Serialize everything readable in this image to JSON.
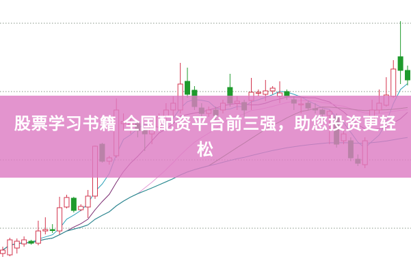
{
  "banner": {
    "text": "股票学习书籍 全国配资平台前三强，助您投资更轻松"
  },
  "chart_data": {
    "type": "candlestick",
    "title": "",
    "xlabel": "",
    "ylabel": "",
    "grid": "horizontal dotted",
    "gridlines": [
      6.7,
      16.7,
      26.7,
      36.7
    ],
    "ylim": [
      0,
      40
    ],
    "colors": {
      "up": "#d2304a",
      "down": "#1e9a2c",
      "grid": "#9aa89a",
      "ma": [
        "#2aa0b8",
        "#7a2a70",
        "#e59ad6",
        "#2e7a28",
        "#2a8ca0"
      ]
    },
    "moving_averages": [
      5,
      10,
      20,
      30,
      60
    ],
    "ohlc": [
      [
        3.0,
        3.5,
        4.0,
        2.5
      ],
      [
        2.8,
        5.0,
        5.3,
        2.6
      ],
      [
        3.8,
        4.8,
        5.2,
        3.0
      ],
      [
        4.4,
        5.0,
        5.5,
        4.0
      ],
      [
        4.8,
        4.5,
        5.0,
        4.3
      ],
      [
        4.5,
        6.3,
        7.8,
        4.2
      ],
      [
        6.3,
        6.5,
        8.3,
        5.8
      ],
      [
        6.5,
        6.4,
        7.3,
        6.0
      ],
      [
        6.3,
        9.7,
        11.3,
        5.8
      ],
      [
        9.8,
        11.2,
        11.6,
        9.6
      ],
      [
        11.1,
        9.3,
        11.3,
        9.0
      ],
      [
        9.4,
        9.9,
        10.2,
        9.2
      ],
      [
        9.8,
        11.4,
        12.3,
        8.2
      ],
      [
        11.4,
        18.7,
        18.8,
        11.0
      ],
      [
        19.0,
        16.5,
        19.2,
        16.3
      ],
      [
        16.5,
        17.0,
        17.3,
        16.0
      ],
      [
        17.3,
        24.0,
        25.7,
        17.0
      ],
      [
        22.0,
        22.3,
        23.5,
        21.0
      ],
      [
        21.8,
        22.0,
        23.0,
        20.5
      ],
      [
        22.0,
        21.0,
        22.5,
        20.0
      ],
      [
        21.0,
        20.5,
        21.5,
        18.0
      ],
      [
        20.5,
        21.5,
        22.0,
        19.0
      ],
      [
        21.5,
        23.0,
        23.5,
        21.0
      ],
      [
        23.0,
        24.0,
        25.0,
        22.5
      ],
      [
        24.0,
        25.0,
        26.0,
        23.0
      ],
      [
        24.0,
        27.8,
        30.9,
        23.5
      ],
      [
        28.2,
        26.3,
        30.2,
        25.8
      ],
      [
        26.9,
        24.5,
        27.5,
        24.0
      ],
      [
        24.3,
        23.5,
        25.0,
        23.0
      ],
      [
        23.5,
        24.0,
        24.5,
        23.0
      ],
      [
        24.0,
        23.2,
        24.5,
        22.5
      ],
      [
        24.0,
        25.0,
        25.5,
        23.5
      ],
      [
        27.3,
        25.0,
        29.3,
        24.5
      ],
      [
        25.0,
        25.3,
        26.0,
        24.0
      ],
      [
        25.1,
        24.0,
        25.5,
        23.0
      ],
      [
        25.4,
        26.6,
        28.7,
        24.0
      ],
      [
        26.5,
        26.6,
        27.0,
        26.0
      ],
      [
        26.3,
        26.8,
        28.4,
        25.3
      ],
      [
        26.8,
        27.2,
        27.5,
        26.3
      ],
      [
        26.0,
        26.5,
        28.2,
        25.0
      ],
      [
        26.7,
        26.0,
        27.0,
        25.5
      ],
      [
        25.5,
        25.0,
        26.0,
        24.0
      ],
      [
        24.8,
        24.9,
        25.8,
        23.5
      ],
      [
        25.0,
        24.3,
        25.4,
        24.0
      ],
      [
        24.2,
        24.0,
        25.0,
        23.5
      ],
      [
        24.0,
        23.4,
        24.2,
        23.0
      ],
      [
        23.2,
        23.8,
        24.0,
        19.0
      ],
      [
        23.0,
        19.0,
        23.5,
        18.5
      ],
      [
        19.5,
        20.5,
        21.0,
        19.0
      ],
      [
        19.5,
        17.0,
        20.0,
        16.5
      ],
      [
        16.8,
        16.2,
        17.5,
        15.8
      ],
      [
        16.0,
        19.5,
        20.0,
        15.5
      ],
      [
        22.5,
        24.0,
        25.5,
        22.0
      ],
      [
        24.0,
        25.0,
        27.0,
        23.5
      ],
      [
        24.7,
        26.2,
        28.8,
        24.5
      ],
      [
        26.0,
        30.0,
        31.3,
        25.8
      ],
      [
        31.8,
        29.8,
        37.0,
        27.8
      ],
      [
        29.8,
        28.4,
        30.5,
        27.6
      ]
    ]
  }
}
